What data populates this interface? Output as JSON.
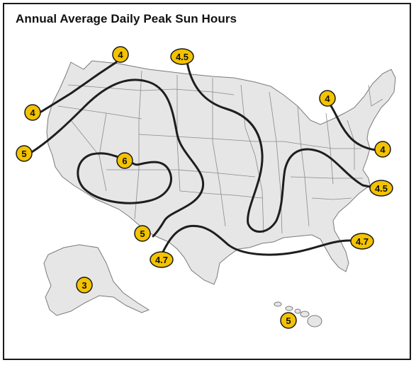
{
  "title": "Annual Average Daily Peak Sun Hours",
  "colors": {
    "land": "#e6e6e6",
    "border": "#7a7a7a",
    "contour": "#1e1e1e",
    "label_fill": "#f4c300",
    "label_stroke": "#1a1a1a"
  },
  "labels": {
    "nw_top": "4",
    "nw_mid": "4",
    "west_5": "5",
    "north_45": "4.5",
    "sw_6": "6",
    "tx_5": "5",
    "gulf_47_left": "4.7",
    "ne_4": "4",
    "midatlantic_4": "4",
    "carolina_45": "4.5",
    "florida_47": "4.7",
    "alaska_3": "3",
    "hawaii_5": "5"
  }
}
